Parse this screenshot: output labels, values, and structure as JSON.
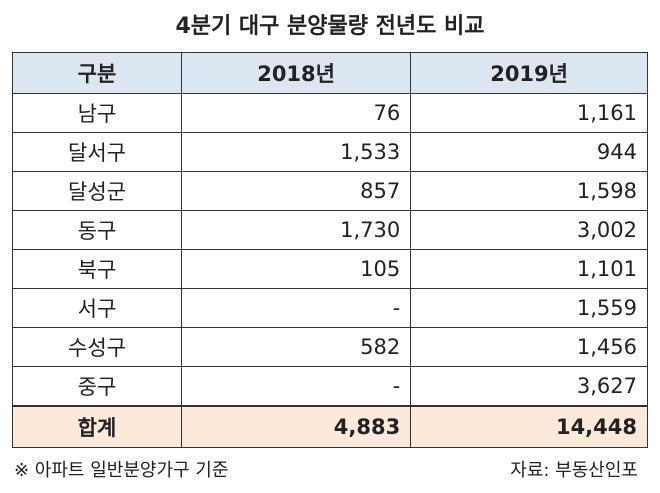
{
  "title": "4분기 대구 분양물량 전년도 비교",
  "table": {
    "header": [
      "구분",
      "2018년",
      "2019년"
    ],
    "rows": [
      [
        "남구",
        "76",
        "1,161"
      ],
      [
        "달서구",
        "1,533",
        "944"
      ],
      [
        "달성군",
        "857",
        "1,598"
      ],
      [
        "동구",
        "1,730",
        "3,002"
      ],
      [
        "북구",
        "105",
        "1,101"
      ],
      [
        "서구",
        "-",
        "1,559"
      ],
      [
        "수성구",
        "582",
        "1,456"
      ],
      [
        "중구",
        "-",
        "3,627"
      ]
    ],
    "total": [
      "합계",
      "4,883",
      "14,448"
    ]
  },
  "footer": {
    "note": "※ 아파트 일반분양가구 기준",
    "source": "자료: 부동산인포"
  }
}
